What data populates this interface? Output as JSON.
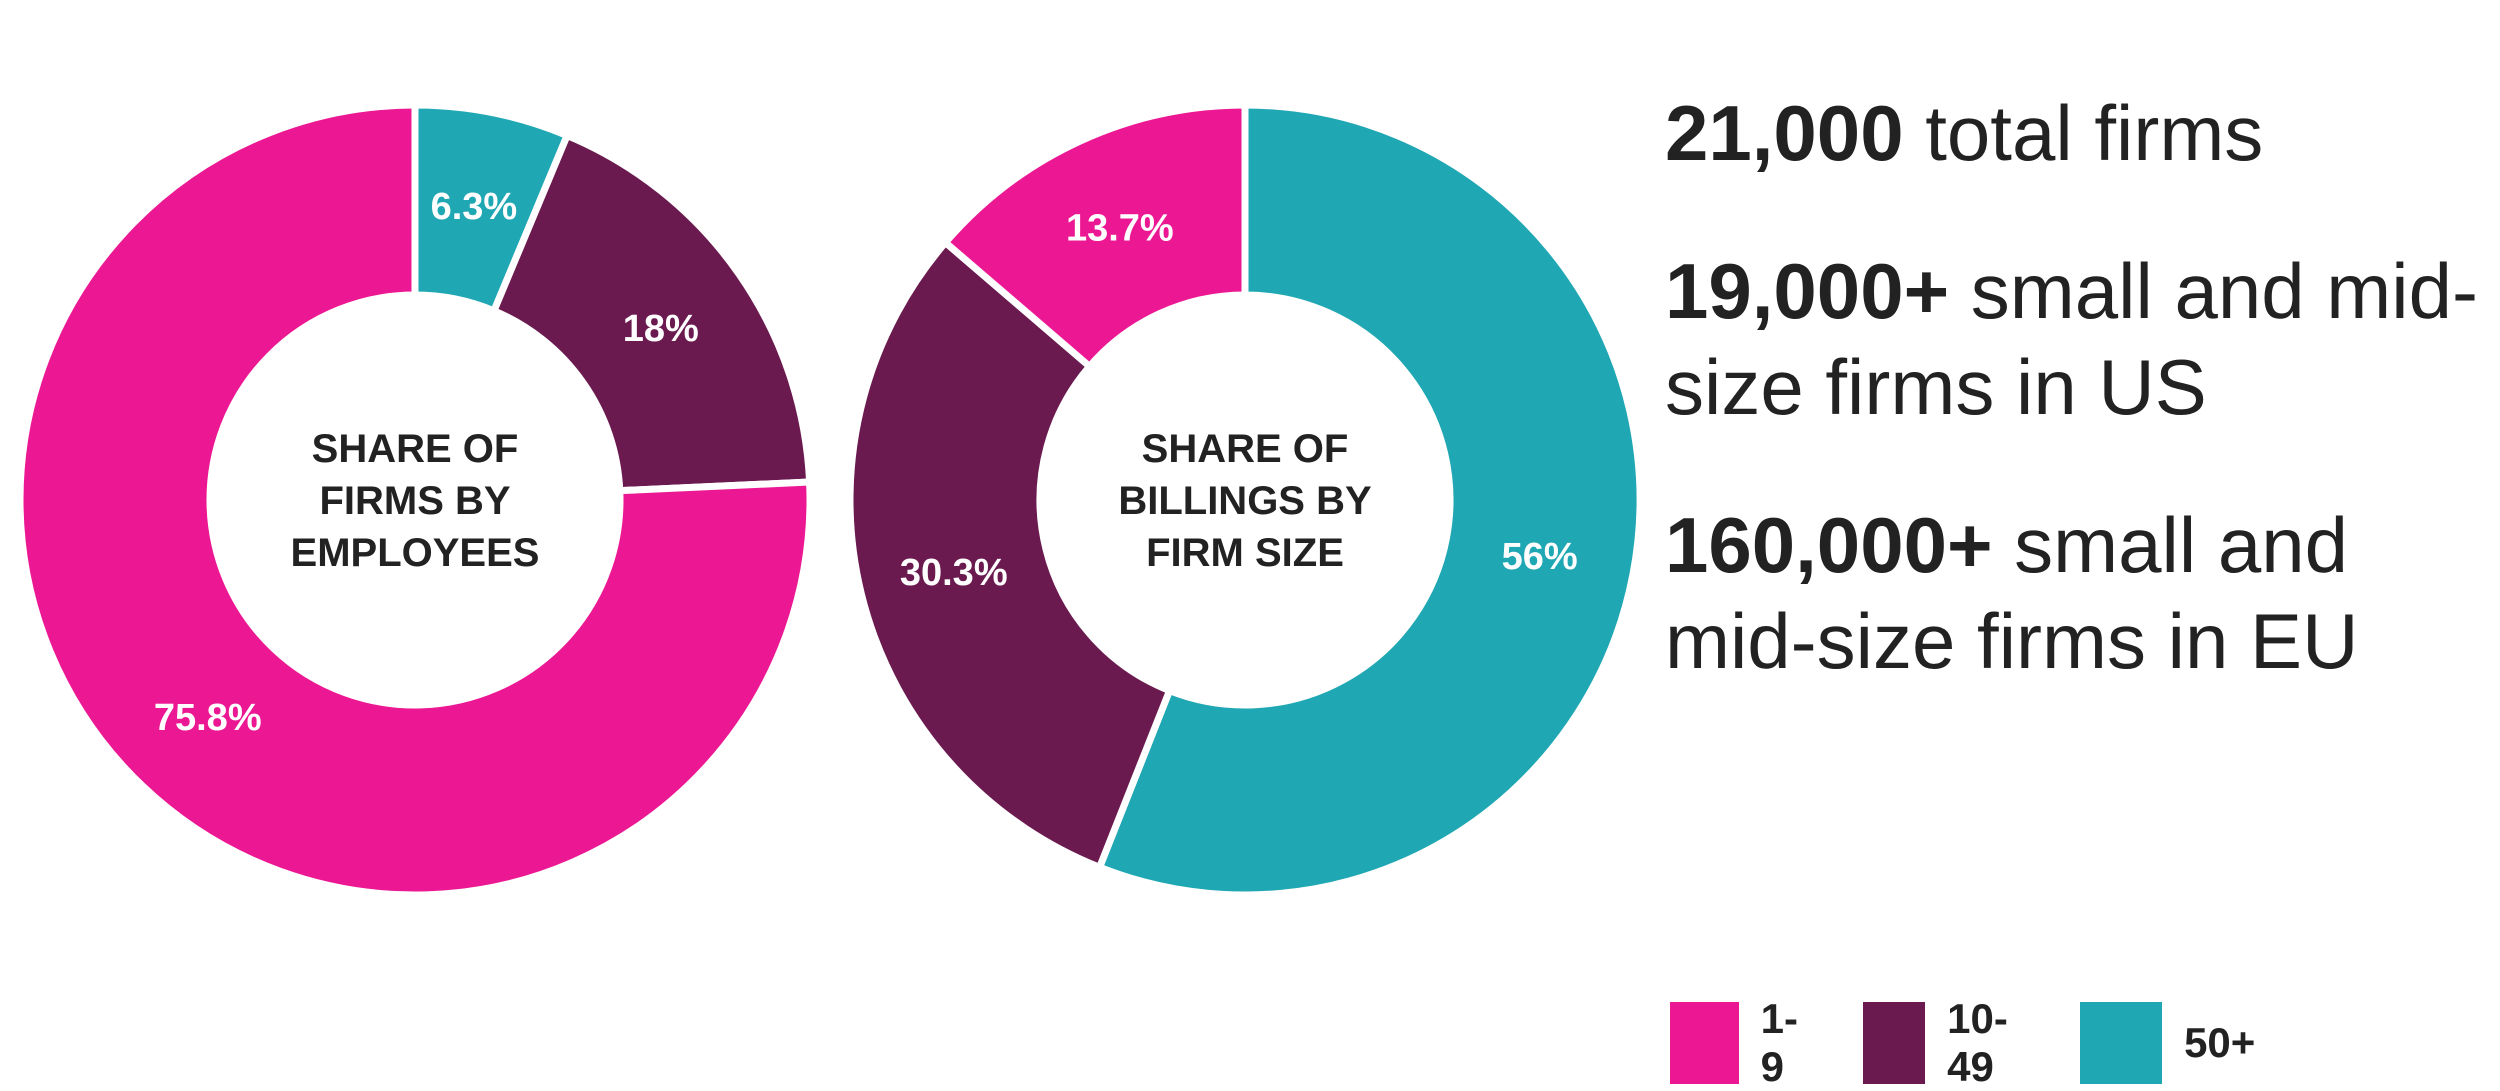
{
  "chart_data": [
    {
      "type": "pie",
      "title": "SHARE OF FIRMS BY EMPLOYEES",
      "title_lines": [
        "SHARE OF",
        "FIRMS BY",
        "EMPLOYEES"
      ],
      "categories": [
        "1-9",
        "10-49",
        "50+"
      ],
      "values": [
        75.8,
        18,
        6.3
      ],
      "value_labels": [
        "75.8%",
        "18%",
        "6.3%"
      ]
    },
    {
      "type": "pie",
      "title": "SHARE OF BILLINGS BY FIRM SIZE",
      "title_lines": [
        "SHARE OF",
        "BILLINGS BY",
        "FIRM SIZE"
      ],
      "categories": [
        "1-9",
        "10-49",
        "50+"
      ],
      "values": [
        13.7,
        30.3,
        56
      ],
      "value_labels": [
        "13.7%",
        "30.3%",
        "56%"
      ]
    }
  ],
  "colors": {
    "1-9": "#EC1893",
    "10-49": "#6B1A4F",
    "50+": "#1FA7B3"
  },
  "stats": [
    {
      "bold": "21,000",
      "text": " total firms"
    },
    {
      "bold": "19,000+",
      "text": " small and mid-size firms in US"
    },
    {
      "bold": "160,000+",
      "text": " small and mid-size firms in EU"
    }
  ],
  "legend": [
    {
      "label": "1-9",
      "color": "#EC1893"
    },
    {
      "label": "10-49",
      "color": "#6B1A4F"
    },
    {
      "label": "50+",
      "color": "#1FA7B3"
    }
  ]
}
